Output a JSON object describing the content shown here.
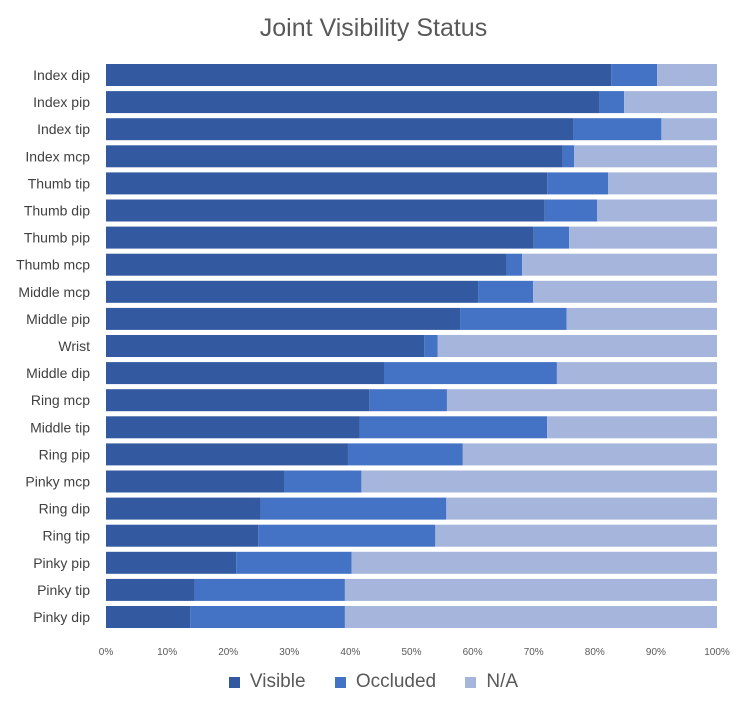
{
  "chart_data": {
    "type": "bar",
    "orientation": "horizontal",
    "stacked": "percent",
    "title": "Joint Visibility Status",
    "xlabel": "",
    "ylabel": "",
    "xlim": [
      0,
      100
    ],
    "x_ticks": [
      "0%",
      "10%",
      "20%",
      "30%",
      "40%",
      "50%",
      "60%",
      "70%",
      "80%",
      "90%",
      "100%"
    ],
    "grid": false,
    "legend_position": "bottom",
    "categories": [
      "Index dip",
      "Index pip",
      "Index tip",
      "Index mcp",
      "Thumb tip",
      "Thumb dip",
      "Thumb pip",
      "Thumb mcp",
      "Middle mcp",
      "Middle pip",
      "Wrist",
      "Middle dip",
      "Ring mcp",
      "Middle tip",
      "Ring pip",
      "Pinky mcp",
      "Ring dip",
      "Ring tip",
      "Pinky pip",
      "Pinky tip",
      "Pinky dip"
    ],
    "series": [
      {
        "name": "Visible",
        "color": "#335AA1",
        "values": [
          82.7,
          80.8,
          76.5,
          74.7,
          72.2,
          71.8,
          70.0,
          65.6,
          60.9,
          58.0,
          52.1,
          45.5,
          43.1,
          41.5,
          39.6,
          29.2,
          25.3,
          24.9,
          21.3,
          14.5,
          13.8
        ]
      },
      {
        "name": "Occluded",
        "color": "#4472C4",
        "values": [
          7.5,
          4.0,
          14.4,
          1.9,
          10.0,
          8.6,
          5.8,
          2.5,
          9.0,
          17.4,
          2.2,
          28.3,
          12.7,
          30.7,
          18.8,
          12.6,
          30.4,
          29.0,
          18.9,
          24.6,
          25.3
        ]
      },
      {
        "name": "N/A",
        "color": "#A6B5DC",
        "values": [
          9.8,
          15.2,
          9.1,
          23.4,
          17.8,
          19.6,
          24.2,
          31.9,
          30.1,
          24.6,
          45.7,
          26.2,
          44.2,
          27.8,
          41.6,
          58.2,
          44.3,
          46.1,
          59.8,
          60.9,
          60.9
        ]
      }
    ]
  }
}
